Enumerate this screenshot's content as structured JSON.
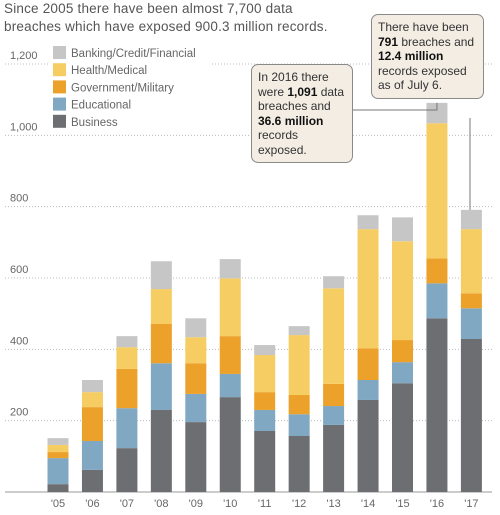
{
  "chart_data": {
    "type": "stacked-bar",
    "title_lines": [
      "Since 2005 there have been almost 7,700 data",
      "breaches which have exposed 900.3 million records."
    ],
    "categories": [
      "'05",
      "'06",
      "'07",
      "'08",
      "'09",
      "'10",
      "'11",
      "'12",
      "'13",
      "'14",
      "'15",
      "'16",
      "'17"
    ],
    "series": [
      {
        "name": "Business",
        "color": "#6d6e71",
        "values": [
          22,
          62,
          123,
          230,
          196,
          266,
          171,
          157,
          188,
          258,
          305,
          487,
          429
        ]
      },
      {
        "name": "Educational",
        "color": "#80a8c3",
        "values": [
          73,
          81,
          112,
          131,
          79,
          65,
          59,
          61,
          53,
          56,
          59,
          98,
          86
        ]
      },
      {
        "name": "Government/Military",
        "color": "#eca12b",
        "values": [
          17,
          95,
          110,
          110,
          86,
          106,
          50,
          54,
          62,
          89,
          62,
          70,
          42
        ]
      },
      {
        "name": "Health/Medical",
        "color": "#f5cd63",
        "values": [
          20,
          42,
          61,
          98,
          73,
          162,
          104,
          168,
          268,
          334,
          277,
          379,
          180
        ]
      },
      {
        "name": "Banking/Credit/Financial",
        "color": "#c6c6c6",
        "values": [
          19,
          34,
          31,
          78,
          53,
          54,
          28,
          25,
          34,
          39,
          67,
          57,
          54
        ]
      }
    ],
    "ylim": [
      0,
      1200
    ],
    "yticks": [
      200,
      400,
      600,
      800,
      {
        "value": 1000,
        "label": "1,000"
      },
      {
        "value": 1200,
        "label": "1,200"
      }
    ],
    "grid": true,
    "legend": "top-left",
    "annotations": [
      {
        "parts": [
          "In 2016 there were ",
          "1,091",
          " data breaches and ",
          "36.6 million",
          " records exposed."
        ]
      },
      {
        "parts": [
          "There have been ",
          "791",
          " breaches and ",
          "12.4 million",
          " records exposed as of July 6."
        ]
      }
    ]
  }
}
